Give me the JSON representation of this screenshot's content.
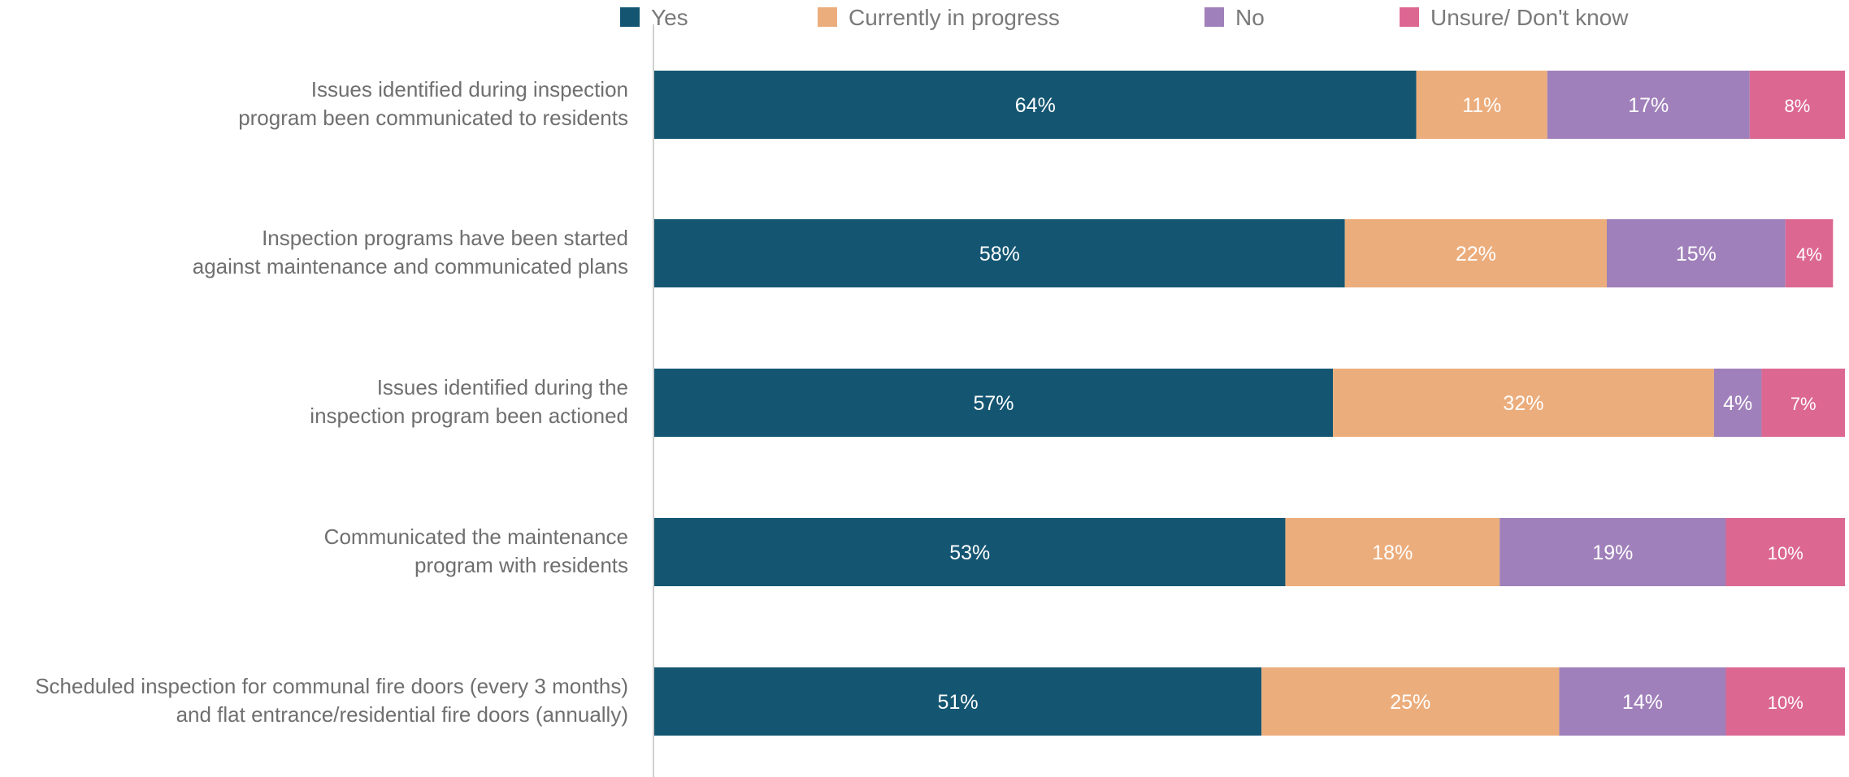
{
  "chart_data": {
    "type": "bar",
    "orientation": "horizontal",
    "stacked": true,
    "legend_position": "top",
    "grid": false,
    "xlim": [
      0,
      100
    ],
    "categories": [
      [
        "Issues identified during inspection",
        "program been communicated to residents"
      ],
      [
        "Inspection programs have been started",
        "against maintenance and communicated plans"
      ],
      [
        "Issues identified during the",
        "inspection program been actioned"
      ],
      [
        "Communicated the maintenance",
        "program with residents"
      ],
      [
        "Scheduled inspection for communal fire doors (every 3 months)",
        "and flat entrance/residential fire doors (annually)"
      ]
    ],
    "series": [
      {
        "name": "Yes",
        "color": "#145672",
        "values": [
          64,
          58,
          57,
          53,
          51
        ],
        "labels": [
          "64%",
          "58%",
          "57%",
          "53%",
          "51%"
        ]
      },
      {
        "name": "Currently in progress",
        "color": "#ECAD7C",
        "values": [
          11,
          22,
          32,
          18,
          25
        ],
        "labels": [
          "11%",
          "22%",
          "32%",
          "18%",
          "25%"
        ]
      },
      {
        "name": "No",
        "color": "#A080BA",
        "values": [
          17,
          15,
          4,
          19,
          14
        ],
        "labels": [
          "17%",
          "15%",
          "4%",
          "19%",
          "14%"
        ]
      },
      {
        "name": "Unsure/ Don't know",
        "color": "#DC6892",
        "values": [
          8,
          4,
          7,
          10,
          10
        ],
        "labels": [
          "8%",
          "4%",
          "7%",
          "10%",
          "10%"
        ]
      }
    ]
  }
}
